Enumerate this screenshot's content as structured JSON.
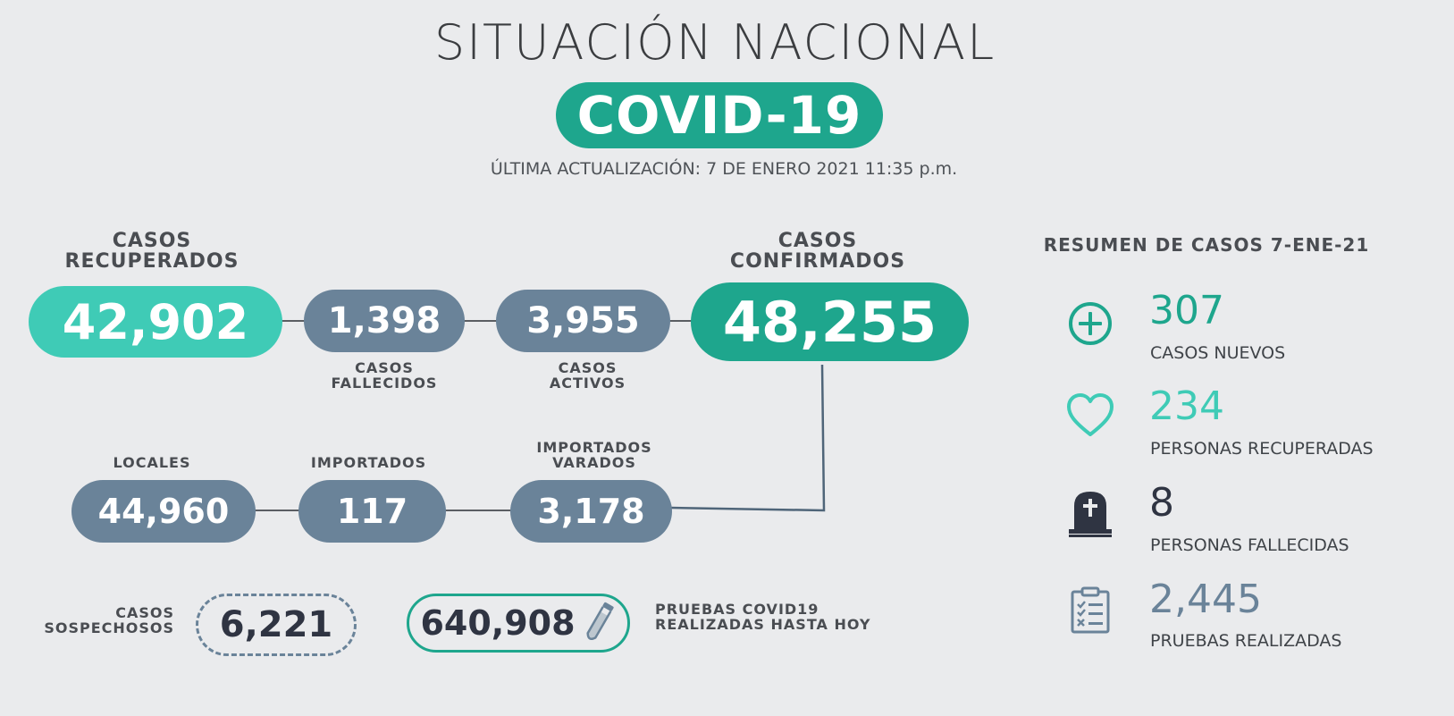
{
  "header": {
    "title": "SITUACIÓN NACIONAL",
    "badge": "COVID-19",
    "updated": "ÚLTIMA ACTUALIZACIÓN: 7 DE ENERO 2021 11:35 p.m."
  },
  "flow": {
    "recuperados": {
      "label_1": "CASOS",
      "label_2": "RECUPERADOS",
      "value": "42,902"
    },
    "fallecidos": {
      "label_1": "CASOS",
      "label_2": "FALLECIDOS",
      "value": "1,398"
    },
    "activos": {
      "label_1": "CASOS",
      "label_2": "ACTIVOS",
      "value": "3,955"
    },
    "confirmados": {
      "label_1": "CASOS",
      "label_2": "CONFIRMADOS",
      "value": "48,255"
    },
    "locales": {
      "label": "LOCALES",
      "value": "44,960"
    },
    "importados": {
      "label": "IMPORTADOS",
      "value": "117"
    },
    "importados_varados": {
      "label_1": "IMPORTADOS",
      "label_2": "VARADOS",
      "value": "3,178"
    }
  },
  "bottom": {
    "sospechosos": {
      "label_1": "CASOS",
      "label_2": "SOSPECHOSOS",
      "value": "6,221"
    },
    "pruebas": {
      "value": "640,908",
      "label_1": "PRUEBAS COVID19",
      "label_2": "REALIZADAS HASTA HOY"
    }
  },
  "summary": {
    "title": "RESUMEN DE CASOS 7-ENE-21",
    "items": [
      {
        "value": "307",
        "label": "CASOS NUEVOS",
        "icon": "plus-circle-icon",
        "color": "#1ea68d"
      },
      {
        "value": "234",
        "label": "PERSONAS RECUPERADAS",
        "icon": "heart-icon",
        "color": "#3fcbb6"
      },
      {
        "value": "8",
        "label": "PERSONAS FALLECIDAS",
        "icon": "tombstone-icon",
        "color": "#2f3442"
      },
      {
        "value": "2,445",
        "label": "PRUEBAS REALIZADAS",
        "icon": "clipboard-checklist-icon",
        "color": "#6a8399"
      }
    ]
  },
  "colors": {
    "background": "#eaebed",
    "teal_dark": "#1ea68d",
    "teal_light": "#3fcbb6",
    "slate": "#6a8399",
    "dark": "#2f3442"
  }
}
